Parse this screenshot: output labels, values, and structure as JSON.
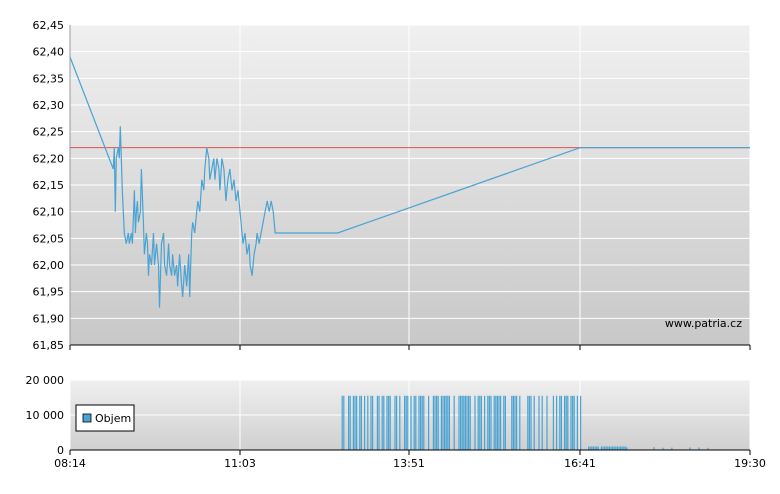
{
  "colors": {
    "price_line": "#4aa3d3",
    "reference_line": "#e0554a",
    "volume_bar": "#4aa3d3",
    "grid": "#ffffff",
    "plot_top": "#f0f0f0",
    "plot_bottom": "#c8c8c8"
  },
  "watermark": "www.patria.cz",
  "chart_data": [
    {
      "type": "line",
      "title": "",
      "x_ticks": [
        "08:14",
        "11:03",
        "13:51",
        "16:41",
        "19:30"
      ],
      "x_domain": [
        "08:14",
        "19:30"
      ],
      "ylim": [
        61.85,
        62.45
      ],
      "y_ticks": [
        "62,45",
        "62,40",
        "62,35",
        "62,30",
        "62,25",
        "62,20",
        "62,15",
        "62,10",
        "62,05",
        "62,00",
        "61,95",
        "61,90",
        "61,85"
      ],
      "grid": true,
      "reference_value": 62.22,
      "series": [
        {
          "x": [
            "08:14",
            "08:57",
            "08:58",
            "08:59",
            "09:00",
            "09:02",
            "09:03",
            "09:04",
            "09:06",
            "09:08",
            "09:10",
            "09:12",
            "09:13",
            "09:15",
            "09:16",
            "09:18",
            "09:19",
            "09:20",
            "09:21",
            "09:22",
            "09:24",
            "09:25",
            "09:27",
            "09:28",
            "09:30",
            "09:31",
            "09:32",
            "09:33",
            "09:35",
            "09:37",
            "09:38",
            "09:40",
            "09:42",
            "09:43",
            "09:45",
            "09:47",
            "09:48",
            "09:50",
            "09:52",
            "09:53",
            "09:55",
            "09:56",
            "09:58",
            "10:00",
            "10:01",
            "10:03",
            "10:05",
            "10:06",
            "10:08",
            "10:10",
            "10:12",
            "10:13",
            "10:15",
            "10:16",
            "10:18",
            "10:20",
            "10:21",
            "10:23",
            "10:25",
            "10:27",
            "10:28",
            "10:30",
            "10:32",
            "10:33",
            "10:35",
            "10:37",
            "10:38",
            "10:40",
            "10:42",
            "10:43",
            "10:45",
            "10:47",
            "10:49",
            "10:51",
            "10:53",
            "10:55",
            "10:57",
            "10:59",
            "11:01",
            "11:03",
            "11:05",
            "11:06",
            "11:08",
            "11:10",
            "11:12",
            "11:13",
            "11:15",
            "11:17",
            "11:19",
            "11:20",
            "11:22",
            "11:24",
            "11:26",
            "11:28",
            "11:30",
            "11:32",
            "11:34",
            "11:36",
            "11:38",
            "11:40",
            "11:42",
            "11:44",
            "11:46",
            "11:48",
            "11:50",
            "11:52",
            "11:54",
            "11:56",
            "11:58",
            "12:00",
            "12:02",
            "12:04",
            "12:06",
            "12:08",
            "12:10",
            "12:12",
            "12:14",
            "12:16",
            "12:18",
            "12:20",
            "12:24",
            "12:28",
            "12:32",
            "12:36",
            "12:40",
            "16:41",
            "16:42",
            "19:30"
          ],
          "y": [
            62.39,
            62.18,
            62.22,
            62.1,
            62.2,
            62.22,
            62.2,
            62.26,
            62.14,
            62.06,
            62.04,
            62.06,
            62.04,
            62.06,
            62.04,
            62.14,
            62.06,
            62.1,
            62.12,
            62.08,
            62.1,
            62.18,
            62.08,
            62.02,
            62.06,
            62.04,
            61.98,
            62.02,
            62.0,
            62.06,
            62.0,
            62.04,
            62.0,
            61.92,
            62.04,
            62.06,
            62.0,
            61.98,
            62.04,
            62.0,
            61.98,
            62.02,
            61.98,
            62.0,
            61.96,
            62.02,
            61.96,
            61.94,
            62.0,
            61.96,
            62.02,
            61.94,
            62.06,
            62.08,
            62.06,
            62.1,
            62.12,
            62.1,
            62.16,
            62.14,
            62.18,
            62.22,
            62.2,
            62.16,
            62.18,
            62.2,
            62.16,
            62.2,
            62.18,
            62.14,
            62.2,
            62.18,
            62.12,
            62.16,
            62.18,
            62.14,
            62.16,
            62.12,
            62.14,
            62.1,
            62.06,
            62.04,
            62.06,
            62.02,
            62.04,
            62.0,
            61.98,
            62.02,
            62.04,
            62.06,
            62.04,
            62.06,
            62.08,
            62.1,
            62.12,
            62.1,
            62.12,
            62.1,
            62.06,
            62.06,
            62.06,
            62.06,
            62.06,
            62.06,
            62.06,
            62.06,
            62.06,
            62.06,
            62.06,
            62.06,
            62.06,
            62.06,
            62.06,
            62.06,
            62.06,
            62.06,
            62.06,
            62.06,
            62.06,
            62.06,
            62.06,
            62.06,
            62.06,
            62.06,
            62.06,
            62.22,
            62.22,
            62.22
          ]
        }
      ]
    },
    {
      "type": "bar",
      "title": "",
      "ylim": [
        0,
        20000
      ],
      "y_ticks": [
        "20 000",
        "10 000",
        "0"
      ],
      "legend": "Objem",
      "legend_position": "left",
      "x_ticks": [
        "08:14",
        "11:03",
        "13:51",
        "16:41",
        "19:30"
      ],
      "series": [
        {
          "name": "Objem",
          "bands": [
            {
              "from": "12:44",
              "to": "16:41",
              "value": 15500,
              "density": "dense"
            },
            {
              "from": "16:41",
              "to": "17:27",
              "value": 1000,
              "density": "dense"
            },
            {
              "from": "17:27",
              "to": "19:02",
              "value": 700,
              "density": "sparse"
            }
          ]
        }
      ]
    }
  ]
}
